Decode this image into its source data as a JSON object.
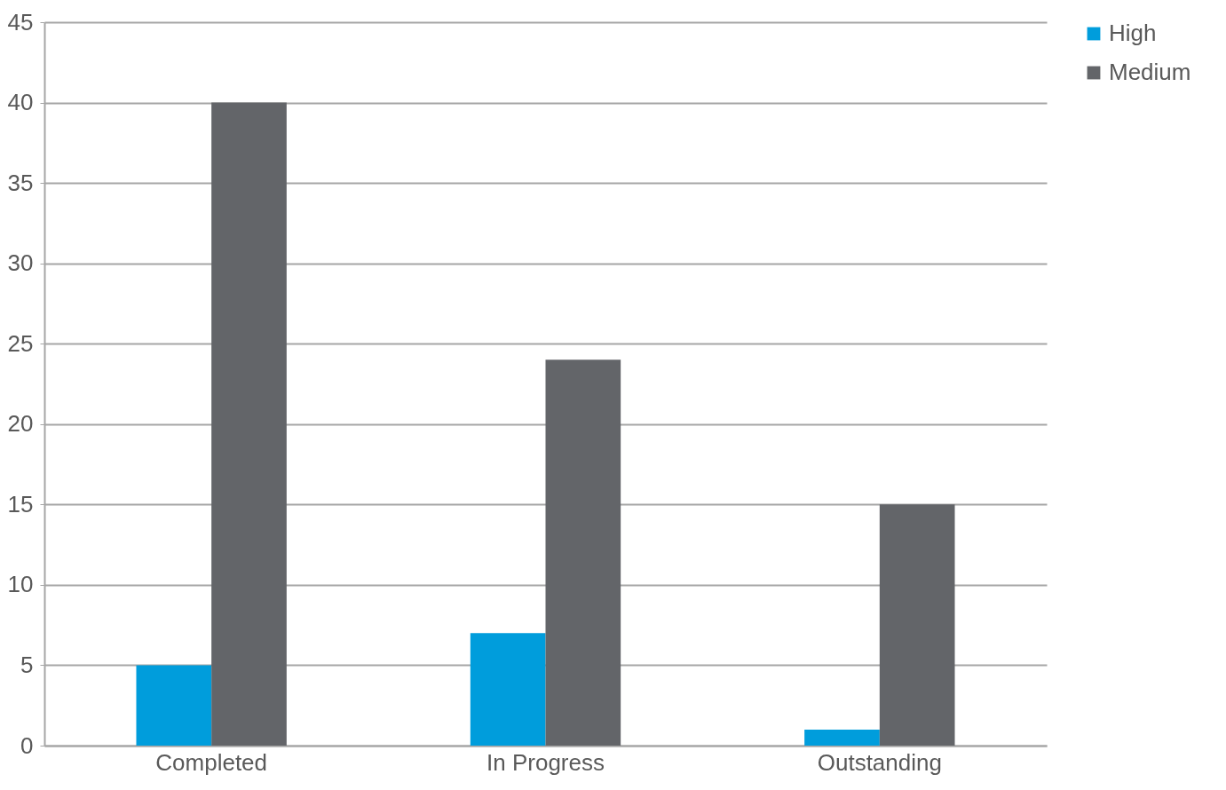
{
  "chart_data": {
    "type": "bar",
    "categories": [
      "Completed",
      "In Progress",
      "Outstanding"
    ],
    "series": [
      {
        "name": "High",
        "color": "#009ddc",
        "values": [
          5,
          7,
          1
        ]
      },
      {
        "name": "Medium",
        "color": "#636569",
        "values": [
          40,
          24,
          15
        ]
      }
    ],
    "ylim": [
      0,
      45
    ],
    "yticks": [
      0,
      5,
      10,
      15,
      20,
      25,
      30,
      35,
      40,
      45
    ],
    "grid": "y",
    "legend": "right"
  }
}
